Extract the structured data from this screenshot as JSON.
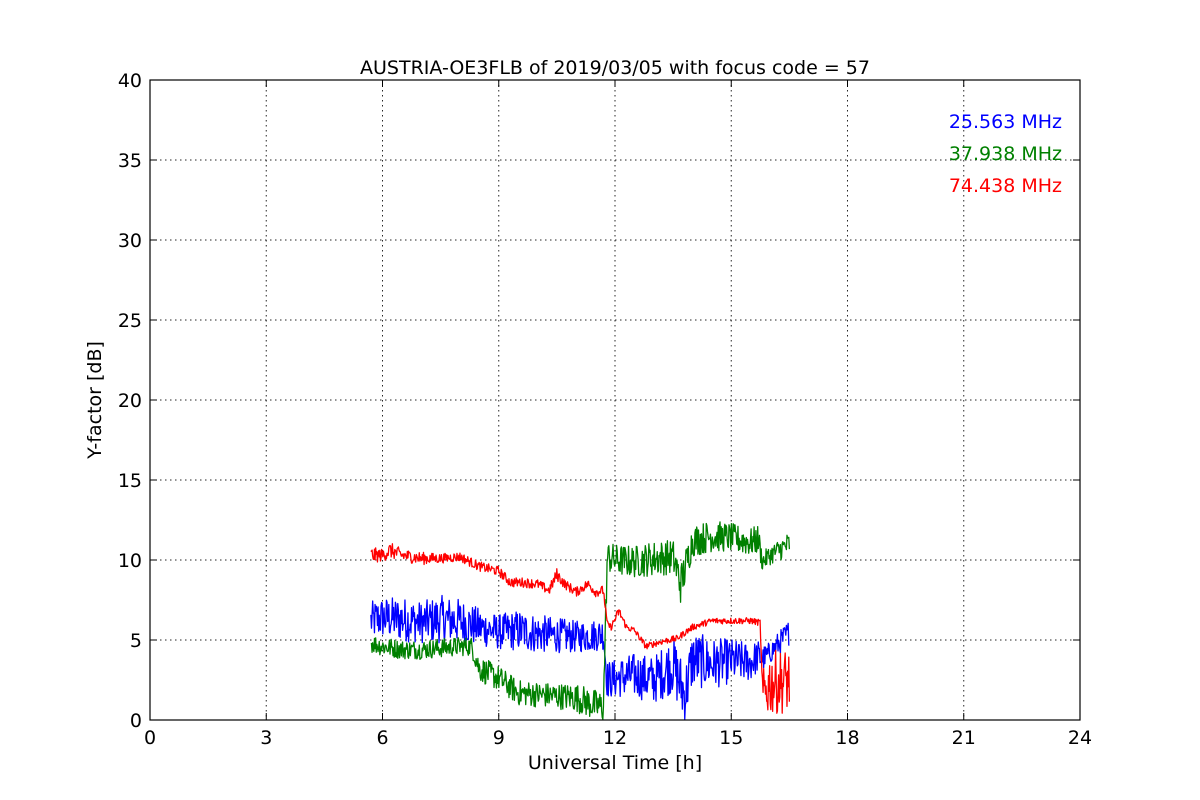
{
  "chart_data": {
    "type": "line",
    "title": "AUSTRIA-OE3FLB of 2019/03/05 with focus code = 57",
    "xlabel": "Universal Time [h]",
    "ylabel": "Y-factor [dB]",
    "xlim": [
      0,
      24
    ],
    "ylim": [
      0,
      40
    ],
    "xticks": [
      0,
      3,
      6,
      9,
      12,
      15,
      18,
      21,
      24
    ],
    "yticks": [
      0,
      5,
      10,
      15,
      20,
      25,
      30,
      35,
      40
    ],
    "xtick_labels": [
      "0",
      "3",
      "6",
      "9",
      "12",
      "15",
      "18",
      "21",
      "24"
    ],
    "ytick_labels": [
      "0",
      "5",
      "10",
      "15",
      "20",
      "25",
      "30",
      "35",
      "40"
    ],
    "grid": true,
    "legend_placement": "top-right",
    "series": [
      {
        "name": "25.563 MHz",
        "color": "#0000ff",
        "x": [
          5.7,
          6.0,
          6.5,
          7.0,
          7.5,
          8.0,
          8.5,
          9.0,
          9.5,
          10.0,
          10.5,
          11.0,
          11.5,
          11.7,
          11.8,
          12.0,
          12.5,
          13.0,
          13.5,
          13.8,
          14.0,
          14.5,
          15.0,
          15.5,
          15.7,
          15.8,
          16.0,
          16.5
        ],
        "y": [
          6.2,
          6.4,
          6.3,
          6.1,
          6.3,
          6.2,
          5.8,
          5.5,
          5.6,
          5.4,
          5.3,
          5.2,
          5.3,
          5.4,
          2.5,
          2.6,
          2.8,
          2.5,
          3.5,
          1.5,
          3.8,
          3.5,
          3.7,
          3.6,
          4.0,
          3.8,
          4.2,
          5.5
        ],
        "band": [
          1.2,
          1.3,
          1.4,
          1.3,
          1.5,
          1.4,
          1.2,
          1.1,
          1.3,
          1.2,
          1.1,
          1.0,
          1.0,
          1.0,
          1.2,
          1.2,
          1.4,
          1.5,
          1.8,
          2.0,
          1.8,
          1.6,
          1.4,
          1.2,
          1.0,
          0.8,
          0.7,
          0.8
        ]
      },
      {
        "name": "37.938 MHz",
        "color": "#008000",
        "x": [
          5.7,
          6.0,
          6.5,
          7.0,
          7.5,
          8.0,
          8.3,
          8.5,
          9.0,
          9.5,
          10.0,
          10.5,
          11.0,
          11.5,
          11.7,
          11.8,
          12.0,
          12.5,
          13.0,
          13.5,
          13.7,
          14.0,
          14.5,
          15.0,
          15.5,
          15.7,
          15.8,
          16.0,
          16.5
        ],
        "y": [
          4.8,
          4.6,
          4.4,
          4.4,
          4.5,
          4.6,
          4.6,
          3.2,
          2.6,
          1.7,
          1.6,
          1.5,
          1.4,
          0.9,
          0.8,
          10.2,
          10.0,
          9.9,
          10.1,
          10.2,
          8.5,
          11.2,
          11.5,
          11.4,
          11.1,
          11.3,
          9.9,
          10.3,
          11.0
        ],
        "band": [
          0.6,
          0.6,
          0.6,
          0.6,
          0.6,
          0.6,
          0.6,
          0.8,
          0.8,
          0.8,
          0.8,
          0.8,
          0.9,
          1.0,
          1.0,
          1.0,
          1.0,
          1.0,
          1.1,
          1.1,
          1.3,
          1.0,
          1.0,
          0.9,
          0.9,
          0.9,
          0.6,
          0.6,
          0.8
        ]
      },
      {
        "name": "74.438 MHz",
        "color": "#ff0000",
        "x": [
          5.7,
          6.0,
          6.2,
          6.5,
          7.0,
          7.5,
          8.0,
          8.5,
          9.0,
          9.3,
          9.6,
          10.0,
          10.3,
          10.5,
          10.7,
          11.0,
          11.3,
          11.5,
          11.7,
          11.8,
          11.9,
          12.1,
          12.3,
          12.5,
          12.8,
          13.2,
          13.6,
          14.0,
          14.5,
          15.0,
          15.5,
          15.7,
          15.75,
          15.8,
          16.0,
          16.5
        ],
        "y": [
          10.3,
          10.3,
          10.6,
          10.3,
          10.1,
          10.1,
          10.2,
          9.6,
          9.3,
          8.6,
          8.6,
          8.5,
          8.1,
          9.1,
          8.5,
          8.0,
          8.5,
          8.0,
          8.1,
          6.0,
          5.8,
          6.8,
          5.8,
          5.6,
          4.6,
          4.9,
          5.1,
          5.8,
          6.2,
          6.2,
          6.2,
          6.1,
          6.1,
          1.5,
          2.3,
          2.5
        ],
        "band": [
          0.5,
          0.4,
          0.5,
          0.4,
          0.4,
          0.3,
          0.3,
          0.3,
          0.3,
          0.3,
          0.3,
          0.3,
          0.3,
          0.4,
          0.3,
          0.3,
          0.3,
          0.3,
          0.3,
          0.2,
          0.2,
          0.3,
          0.2,
          0.2,
          0.2,
          0.2,
          0.2,
          0.2,
          0.2,
          0.2,
          0.2,
          0.2,
          0.2,
          1.5,
          2.0,
          2.0
        ]
      }
    ]
  }
}
